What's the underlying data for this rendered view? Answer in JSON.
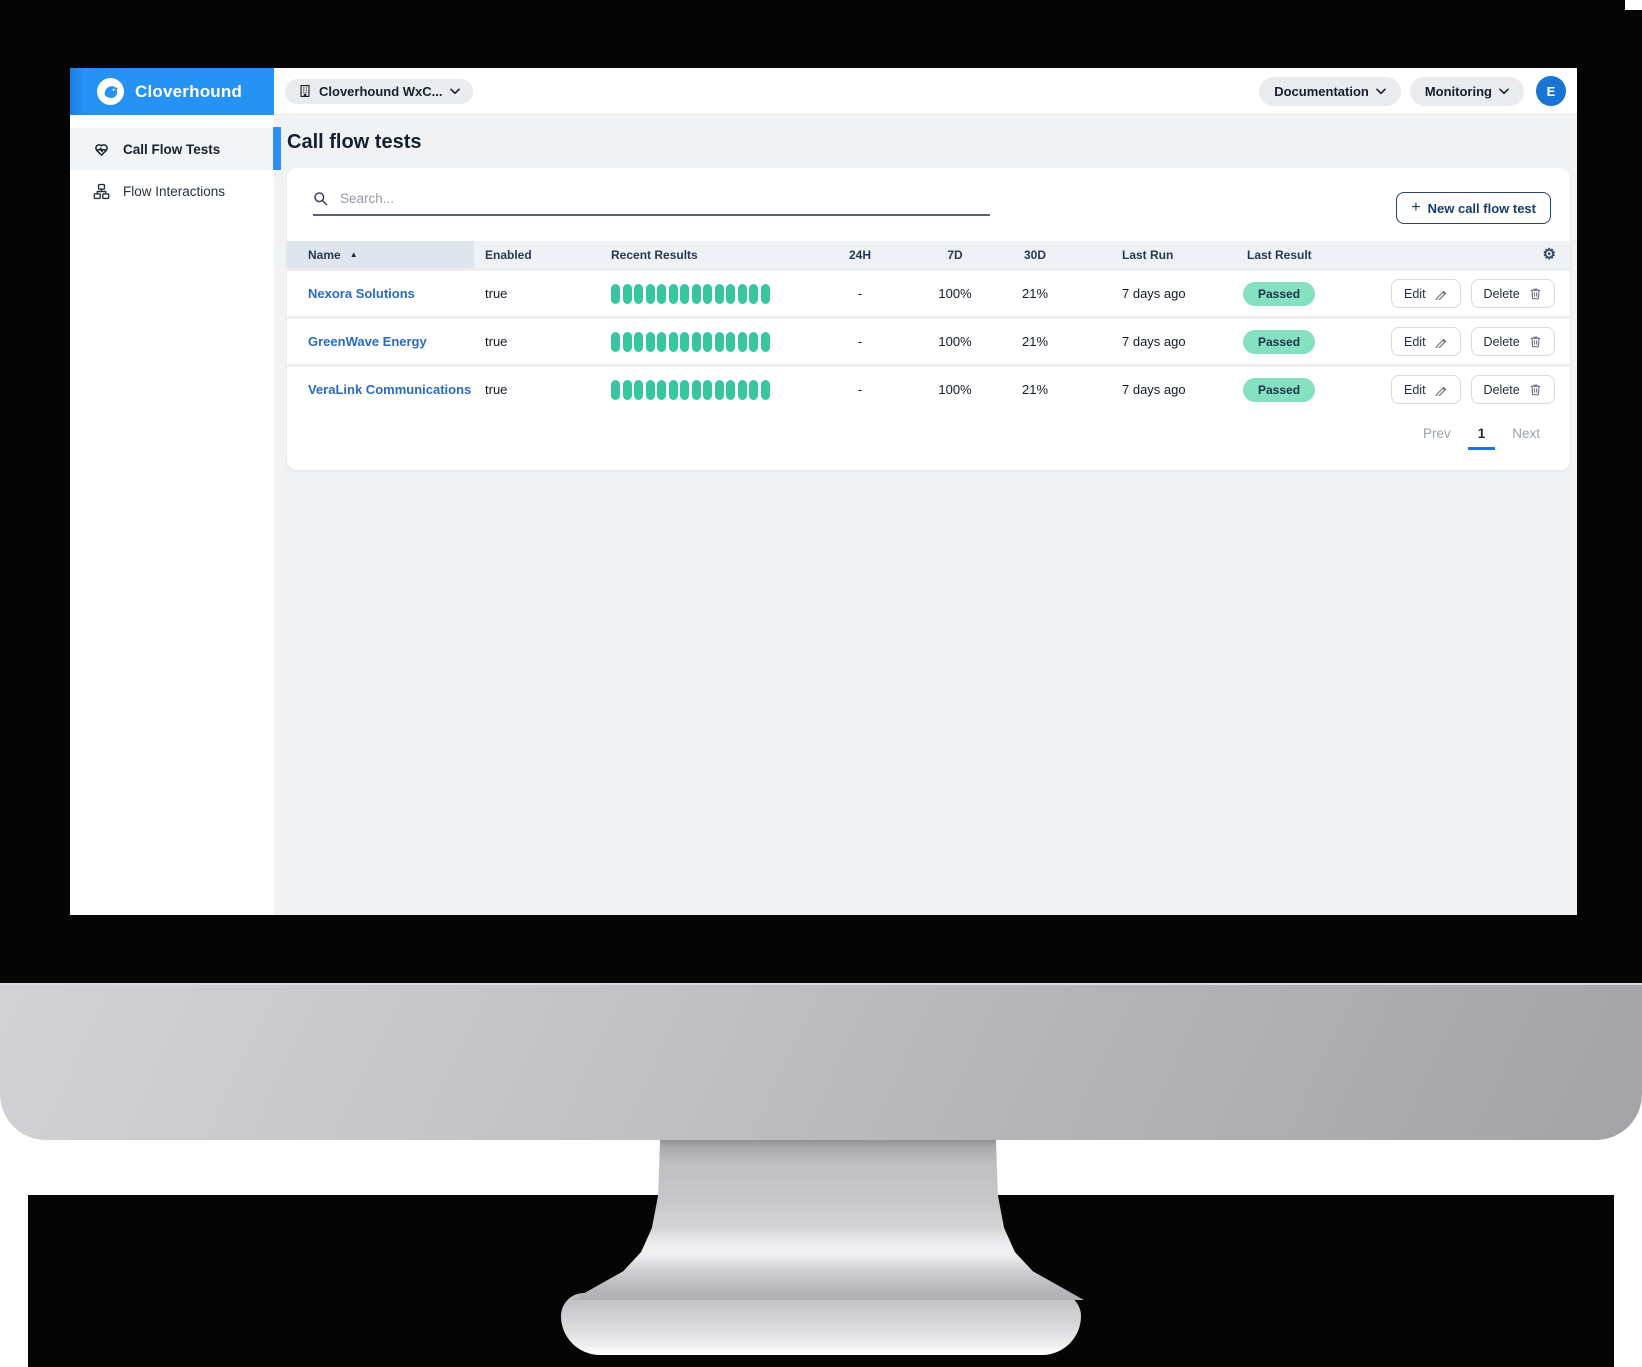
{
  "brand": {
    "name": "Cloverhound",
    "logo_icon": "dog-logo-icon"
  },
  "topbar": {
    "workspace": {
      "label": "Cloverhound WxC...",
      "icon": "building-icon"
    },
    "documentation_label": "Documentation",
    "monitoring_label": "Monitoring",
    "avatar_initial": "E"
  },
  "sidebar": {
    "items": [
      {
        "label": "Call Flow Tests",
        "icon": "heart-pulse-icon",
        "active": true
      },
      {
        "label": "Flow Interactions",
        "icon": "sitemap-icon",
        "active": false
      }
    ]
  },
  "page": {
    "title": "Call flow tests"
  },
  "search": {
    "placeholder": "Search..."
  },
  "actions": {
    "plus": "+",
    "new_test_label": "New call flow test",
    "edit_label": "Edit",
    "delete_label": "Delete"
  },
  "table": {
    "sort_indicator": "▲",
    "gear_glyph": "⚙",
    "columns": [
      "Name",
      "Enabled",
      "Recent Results",
      "24H",
      "7D",
      "30D",
      "Last Run",
      "Last Result"
    ],
    "rows": [
      {
        "name": "Nexora Solutions",
        "enabled": "true",
        "recent_results_count": 14,
        "h24": "-",
        "d7": "100%",
        "d30": "21%",
        "last_run": "7 days ago",
        "last_result": "Passed"
      },
      {
        "name": "GreenWave Energy",
        "enabled": "true",
        "recent_results_count": 14,
        "h24": "-",
        "d7": "100%",
        "d30": "21%",
        "last_run": "7 days ago",
        "last_result": "Passed"
      },
      {
        "name": "VeraLink Communications",
        "enabled": "true",
        "recent_results_count": 14,
        "h24": "-",
        "d7": "100%",
        "d30": "21%",
        "last_run": "7 days ago",
        "last_result": "Passed"
      }
    ]
  },
  "pagination": {
    "prev": "Prev",
    "current": "1",
    "next": "Next"
  },
  "colors": {
    "accent_blue": "#2692f4",
    "link_blue": "#2a6bc0",
    "bar_green": "#37c69f",
    "badge_bg": "#84e0bf",
    "badge_text": "#1d3348",
    "pagination_active": "#1a73e8"
  }
}
